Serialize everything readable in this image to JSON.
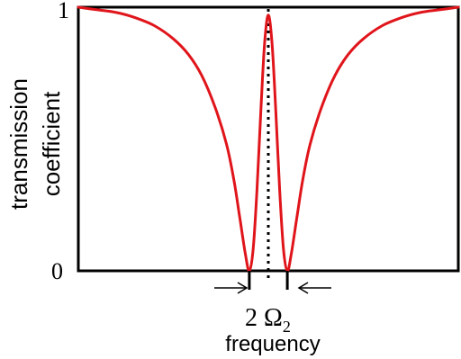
{
  "chart_data": {
    "type": "line",
    "title": "",
    "xlabel": "frequency",
    "ylabel_line1": "transmission",
    "ylabel_line2": "coefficient",
    "yticks": [
      "1",
      "0"
    ],
    "ylim": [
      0,
      1
    ],
    "xlim": [
      -1,
      1
    ],
    "grid": false,
    "legend": "none",
    "annotation": {
      "prefix": "2 ",
      "symbol": "Ω",
      "subscript": "2"
    },
    "series": [
      {
        "color": "#e0151b",
        "x": [
          -1.0,
          -0.9,
          -0.8,
          -0.7,
          -0.6,
          -0.5,
          -0.42,
          -0.35,
          -0.28,
          -0.22,
          -0.18,
          -0.15,
          -0.12,
          -0.1,
          -0.08,
          -0.06,
          -0.04,
          -0.02,
          0.0,
          0.02,
          0.04,
          0.06,
          0.08,
          0.1,
          0.12,
          0.15,
          0.18,
          0.22,
          0.28,
          0.35,
          0.42,
          0.5,
          0.6,
          0.7,
          0.8,
          0.9,
          1.0
        ],
        "y": [
          1.0,
          0.99,
          0.98,
          0.96,
          0.93,
          0.88,
          0.82,
          0.74,
          0.62,
          0.48,
          0.34,
          0.2,
          0.06,
          0.0,
          0.08,
          0.3,
          0.6,
          0.86,
          0.97,
          0.86,
          0.6,
          0.3,
          0.08,
          0.0,
          0.06,
          0.2,
          0.34,
          0.48,
          0.62,
          0.74,
          0.82,
          0.88,
          0.93,
          0.96,
          0.98,
          0.99,
          1.0
        ]
      }
    ],
    "center_marker": {
      "x": 0.0,
      "style": "dotted"
    },
    "dip_positions": [
      -0.1,
      0.1
    ]
  }
}
